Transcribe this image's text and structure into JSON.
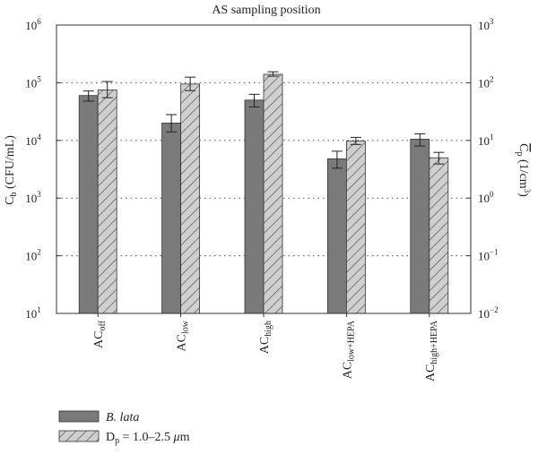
{
  "chart_data": {
    "type": "bar",
    "title": "AS sampling position",
    "categories": [
      {
        "main": "AC",
        "sub": "off"
      },
      {
        "main": "AC",
        "sub": "low"
      },
      {
        "main": "AC",
        "sub": "high"
      },
      {
        "main": "AC",
        "sub": "low+HEPA"
      },
      {
        "main": "AC",
        "sub": "high+HEPA"
      }
    ],
    "left_axis": {
      "label_main": "C",
      "label_sub": "b",
      "label_units": " (CFU/mL)",
      "scale": "log",
      "ylim": [
        10,
        1000000
      ],
      "tick_exponents": [
        1,
        2,
        3,
        4,
        5,
        6
      ]
    },
    "right_axis": {
      "label_main": "C",
      "label_sub": "p",
      "label_units": " (1/cm",
      "label_sup": "3",
      "label_close": ")",
      "overline": true,
      "scale": "log",
      "ylim": [
        0.01,
        1000
      ],
      "tick_exponents": [
        "−2",
        "−1",
        "0",
        "1",
        "2",
        "3"
      ]
    },
    "series": [
      {
        "name": "B. lata",
        "axis": "left",
        "color": "#7a7a7a",
        "pattern": "solid",
        "values": [
          60000,
          20000,
          50000,
          4800,
          10500
        ],
        "err_low": [
          48000,
          14000,
          38000,
          3300,
          8000
        ],
        "err_high": [
          72000,
          28000,
          63000,
          6500,
          13000
        ]
      },
      {
        "name_main": "D",
        "name_sub": "p",
        "name_rest": " = 1.0–2.5 ",
        "name_mu": "μ",
        "name_unit": "m",
        "axis": "right",
        "color": "#c8c8c8",
        "pattern": "hatch",
        "values": [
          75,
          95,
          140,
          9.8,
          5
        ],
        "err_low": [
          55,
          73,
          130,
          8.5,
          3.9
        ],
        "err_high": [
          105,
          125,
          155,
          11.3,
          6.2
        ]
      }
    ],
    "grid": {
      "horizontal_dotted": true
    },
    "legend": {
      "position": "bottom-left"
    }
  }
}
